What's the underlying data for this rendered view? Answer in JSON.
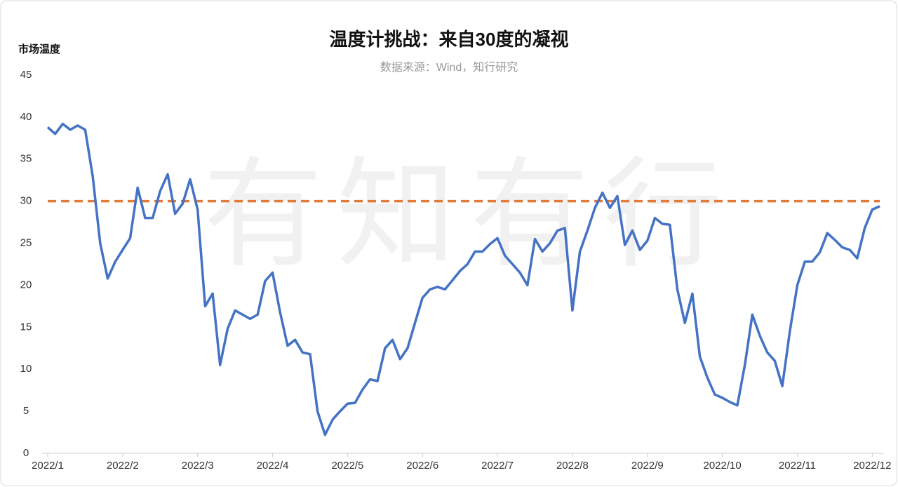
{
  "chart_data": {
    "type": "line",
    "title": "温度计挑战：来自30度的凝视",
    "subtitle": "数据来源：Wind，知行研究",
    "y_label": "市场温度",
    "watermark": "有知有行",
    "categories": [
      "2022/1",
      null,
      null,
      null,
      null,
      null,
      null,
      null,
      null,
      null,
      "2022/2",
      null,
      null,
      null,
      null,
      null,
      null,
      null,
      null,
      null,
      "2022/3",
      null,
      null,
      null,
      null,
      null,
      null,
      null,
      null,
      null,
      "2022/4",
      null,
      null,
      null,
      null,
      null,
      null,
      null,
      null,
      null,
      "2022/5",
      null,
      null,
      null,
      null,
      null,
      null,
      null,
      null,
      null,
      "2022/6",
      null,
      null,
      null,
      null,
      null,
      null,
      null,
      null,
      null,
      "2022/7",
      null,
      null,
      null,
      null,
      null,
      null,
      null,
      null,
      null,
      "2022/8",
      null,
      null,
      null,
      null,
      null,
      null,
      null,
      null,
      null,
      "2022/9",
      null,
      null,
      null,
      null,
      null,
      null,
      null,
      null,
      null,
      "2022/10",
      null,
      null,
      null,
      null,
      null,
      null,
      null,
      null,
      null,
      "2022/11",
      null,
      null,
      null,
      null,
      null,
      null,
      null,
      null,
      null,
      "2022/12",
      null
    ],
    "series": [
      {
        "name": "市场温度",
        "color": "#4472c4",
        "values": [
          38.8,
          38.0,
          39.2,
          38.5,
          39.0,
          38.5,
          33.0,
          25.0,
          20.8,
          22.8,
          24.2,
          25.6,
          31.6,
          28.0,
          28.0,
          31.2,
          33.2,
          28.5,
          29.7,
          32.6,
          29.0,
          17.5,
          19.0,
          10.5,
          14.8,
          17.0,
          16.5,
          16.0,
          16.5,
          20.5,
          21.5,
          16.8,
          12.8,
          13.5,
          12.0,
          11.8,
          5.0,
          2.2,
          4.0,
          5.0,
          5.9,
          6.0,
          7.6,
          8.8,
          8.6,
          12.5,
          13.5,
          11.2,
          12.5,
          15.5,
          18.5,
          19.5,
          19.8,
          19.5,
          20.6,
          21.7,
          22.5,
          24.0,
          24.0,
          24.9,
          25.6,
          23.5,
          22.5,
          21.5,
          20.0,
          25.5,
          24.0,
          25.0,
          26.5,
          26.8,
          17.0,
          24.0,
          26.5,
          29.2,
          31.0,
          29.2,
          30.6,
          24.8,
          26.5,
          24.2,
          25.3,
          28.0,
          27.3,
          27.2,
          19.5,
          15.5,
          19.0,
          11.5,
          9.0,
          7.0,
          6.6,
          6.1,
          5.7,
          10.5,
          16.5,
          14.0,
          12.0,
          11.0,
          8.0,
          14.5,
          20.0,
          22.8,
          22.8,
          23.9,
          26.2,
          25.4,
          24.5,
          24.2,
          23.2,
          26.8,
          29.0,
          29.4
        ]
      }
    ],
    "reference_line": {
      "value": 30,
      "color": "#e07b39"
    },
    "ylim": [
      0,
      45
    ],
    "yticks": [
      0,
      5,
      10,
      15,
      20,
      25,
      30,
      35,
      40,
      45
    ],
    "grid": false
  }
}
